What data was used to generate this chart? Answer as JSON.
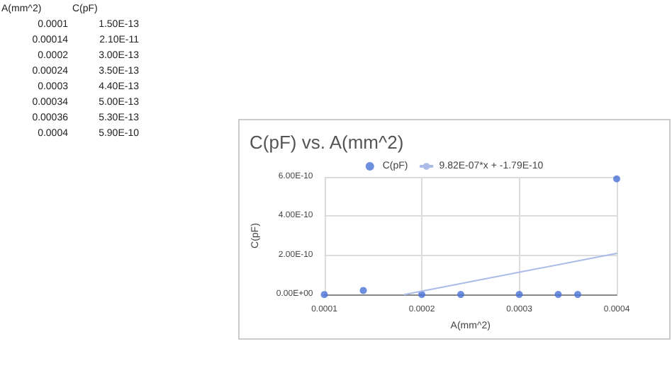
{
  "chart_data": [
    {
      "type": "other",
      "annotations": [
        "A(mm^2)",
        "C(pF)",
        "0.0001",
        "1.50E-13",
        "0.00014",
        "2.10E-11",
        "0.0002",
        "3.00E-13",
        "0.00024",
        "3.50E-13",
        "0.0003",
        "4.40E-13",
        "0.00034",
        "5.00E-13",
        "0.00036",
        "5.30E-13",
        "0.0004",
        "5.90E-10"
      ]
    },
    {
      "type": "scatter",
      "title": "C(pF) vs. A(mm^2)",
      "xlabel": "A(mm^2)",
      "ylabel": "C(pF)",
      "x": [
        0.0001,
        0.00014,
        0.0002,
        0.00024,
        0.0003,
        0.00034,
        0.00036,
        0.0004
      ],
      "series": [
        {
          "name": "C(pF)",
          "color": "#4a72d8",
          "marker": "circle",
          "values": [
            1.5e-13,
            2.1e-11,
            3e-13,
            3.5e-13,
            4.4e-13,
            5e-13,
            5.3e-13,
            5.9e-10
          ]
        },
        {
          "name": "9.82E-07*x + -1.79E-10",
          "type": "line",
          "color": "#a9bbe6",
          "marker": "none",
          "x": [
            0.000182,
            0.0004
          ],
          "values": [
            0,
            2.1e-10
          ]
        }
      ],
      "xlim": [
        0.0001,
        0.0004
      ],
      "xticks": [
        0.0001,
        0.0002,
        0.0003,
        0.0004
      ],
      "ylim": [
        0,
        6e-10
      ],
      "yticks": [
        {
          "value": 0,
          "label": "0.00E+00"
        },
        {
          "value": 2e-10,
          "label": "2.00E-10"
        },
        {
          "value": 4e-10,
          "label": "4.00E-10"
        },
        {
          "value": 6e-10,
          "label": "6.00E-10"
        }
      ],
      "grid": true,
      "legend": "top"
    }
  ]
}
